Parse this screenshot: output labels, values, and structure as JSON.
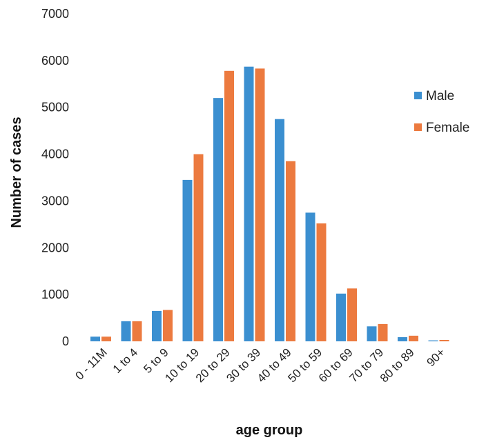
{
  "chart_data": {
    "type": "bar",
    "xlabel": "age group",
    "ylabel": "Number of cases",
    "ylim": [
      0,
      7000
    ],
    "yticks": [
      0,
      1000,
      2000,
      3000,
      4000,
      5000,
      6000,
      7000
    ],
    "grid": false,
    "legend_position": "right",
    "categories": [
      "0 - 11M",
      "1 to 4",
      "5 to 9",
      "10 to 19",
      "20 to 29",
      "30 to 39",
      "40 to 49",
      "50 to 59",
      "60 to 69",
      "70 to 79",
      "80 to 89",
      "90+"
    ],
    "series": [
      {
        "name": "Male",
        "color": "#3b8fd0",
        "values": [
          100,
          430,
          650,
          3450,
          5200,
          5870,
          4750,
          2750,
          1020,
          320,
          90,
          20
        ]
      },
      {
        "name": "Female",
        "color": "#ec7a3f",
        "values": [
          100,
          430,
          670,
          4000,
          5780,
          5830,
          3850,
          2520,
          1130,
          370,
          120,
          30
        ]
      }
    ]
  }
}
